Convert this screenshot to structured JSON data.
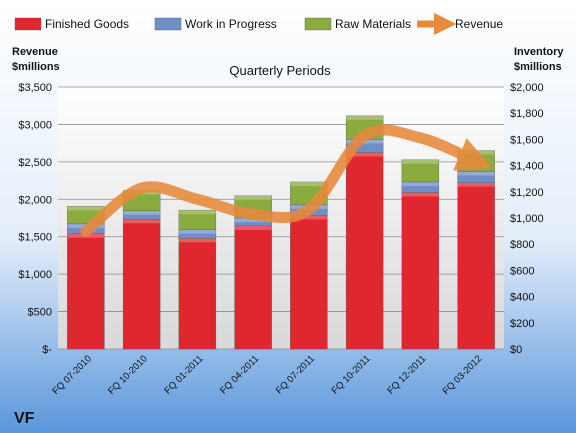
{
  "chart_data": {
    "type": "bar",
    "stacked": true,
    "title": "Quarterly Periods",
    "company": "VF",
    "y_left_label": [
      "Revenue",
      "$millions"
    ],
    "y_right_label": [
      "Inventory",
      "$millions"
    ],
    "y_left_ticks": [
      "$-",
      "$500",
      "$1,000",
      "$1,500",
      "$2,000",
      "$2,500",
      "$3,000",
      "$3,500"
    ],
    "y_right_ticks": [
      "$0",
      "$200",
      "$400",
      "$600",
      "$800",
      "$1,000",
      "$1,200",
      "$1,400",
      "$1,600",
      "$1,800",
      "$2,000"
    ],
    "ylim_left": [
      0,
      3500
    ],
    "ylim_right": [
      0,
      2000
    ],
    "categories": [
      "FQ 07-2010",
      "FQ 10-2010",
      "FQ 01-2011",
      "FQ 04-2011",
      "FQ 07-2011",
      "FQ 10-2011",
      "FQ 12-2011",
      "FQ 03-2012"
    ],
    "series": [
      {
        "name": "Finished Goods",
        "axis": "right",
        "color": "#e0262e",
        "values": [
          880,
          990,
          845,
          940,
          1020,
          1500,
          1195,
          1270
        ]
      },
      {
        "name": "Work in Progress",
        "axis": "right",
        "color": "#6f8fc8",
        "values": [
          75,
          65,
          65,
          60,
          80,
          100,
          80,
          85
        ]
      },
      {
        "name": "Raw Materials",
        "axis": "right",
        "color": "#8aac3e",
        "values": [
          135,
          155,
          150,
          170,
          175,
          180,
          170,
          160
        ]
      },
      {
        "name": "Revenue",
        "axis": "left",
        "type": "line",
        "color": "#e8893b",
        "values": [
          1570,
          2150,
          2000,
          1800,
          1860,
          2850,
          2820,
          2510
        ]
      }
    ],
    "grid": true,
    "legend_position": "top"
  }
}
